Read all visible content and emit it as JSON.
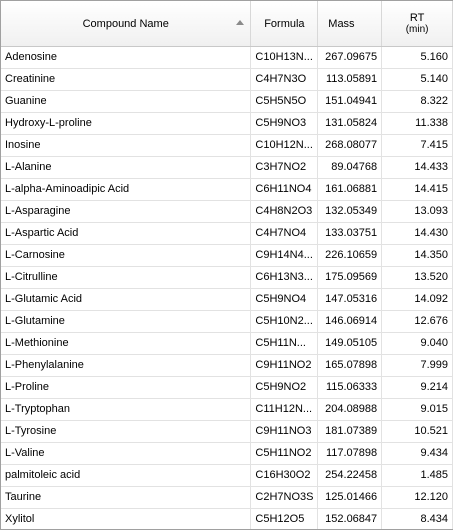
{
  "columns": {
    "name": "Compound Name",
    "formula": "Formula",
    "mass": "Mass",
    "rt_title": "RT",
    "rt_unit": "(min)"
  },
  "rows": [
    {
      "name": "Adenosine",
      "formula": "C10H13N...",
      "mass": "267.09675",
      "rt": "5.160"
    },
    {
      "name": "Creatinine",
      "formula": "C4H7N3O",
      "mass": "113.05891",
      "rt": "5.140"
    },
    {
      "name": "Guanine",
      "formula": "C5H5N5O",
      "mass": "151.04941",
      "rt": "8.322"
    },
    {
      "name": "Hydroxy-L-proline",
      "formula": "C5H9NO3",
      "mass": "131.05824",
      "rt": "11.338"
    },
    {
      "name": "Inosine",
      "formula": "C10H12N...",
      "mass": "268.08077",
      "rt": "7.415"
    },
    {
      "name": "L-Alanine",
      "formula": "C3H7NO2",
      "mass": "89.04768",
      "rt": "14.433"
    },
    {
      "name": "L-alpha-Aminoadipic Acid",
      "formula": "C6H11NO4",
      "mass": "161.06881",
      "rt": "14.415"
    },
    {
      "name": "L-Asparagine",
      "formula": "C4H8N2O3",
      "mass": "132.05349",
      "rt": "13.093"
    },
    {
      "name": "L-Aspartic Acid",
      "formula": "C4H7NO4",
      "mass": "133.03751",
      "rt": "14.430"
    },
    {
      "name": "L-Carnosine",
      "formula": "C9H14N4...",
      "mass": "226.10659",
      "rt": "14.350"
    },
    {
      "name": "L-Citrulline",
      "formula": "C6H13N3...",
      "mass": "175.09569",
      "rt": "13.520"
    },
    {
      "name": "L-Glutamic Acid",
      "formula": "C5H9NO4",
      "mass": "147.05316",
      "rt": "14.092"
    },
    {
      "name": "L-Glutamine",
      "formula": "C5H10N2...",
      "mass": "146.06914",
      "rt": "12.676"
    },
    {
      "name": "L-Methionine",
      "formula": "C5H11N...",
      "mass": "149.05105",
      "rt": "9.040"
    },
    {
      "name": "L-Phenylalanine",
      "formula": "C9H11NO2",
      "mass": "165.07898",
      "rt": "7.999"
    },
    {
      "name": "L-Proline",
      "formula": "C5H9NO2",
      "mass": "115.06333",
      "rt": "9.214"
    },
    {
      "name": "L-Tryptophan",
      "formula": "C11H12N...",
      "mass": "204.08988",
      "rt": "9.015"
    },
    {
      "name": "L-Tyrosine",
      "formula": "C9H11NO3",
      "mass": "181.07389",
      "rt": "10.521"
    },
    {
      "name": "L-Valine",
      "formula": "C5H11NO2",
      "mass": "117.07898",
      "rt": "9.434"
    },
    {
      "name": "palmitoleic acid",
      "formula": "C16H30O2",
      "mass": "254.22458",
      "rt": "1.485"
    },
    {
      "name": "Taurine",
      "formula": "C2H7NO3S",
      "mass": "125.01466",
      "rt": "12.120"
    },
    {
      "name": "Xylitol",
      "formula": "C5H12O5",
      "mass": "152.06847",
      "rt": "8.434"
    }
  ]
}
